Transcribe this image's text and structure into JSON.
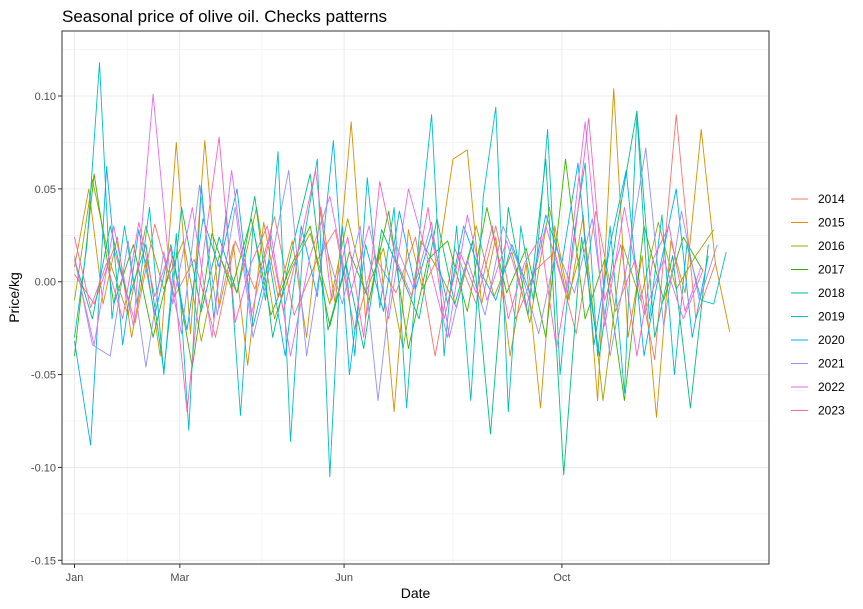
{
  "chart_data": {
    "type": "line",
    "title": "Seasonal price of olive oil. Checks patterns",
    "xlabel": "Date",
    "ylabel": "Price/kg",
    "x_ticks": [
      "Jan",
      "Mar",
      "Jun",
      "Oct"
    ],
    "x_tick_days": [
      1,
      60,
      152,
      274
    ],
    "x_range_days": [
      -6,
      390
    ],
    "ylim": [
      -0.152,
      0.135
    ],
    "y_ticks": [
      -0.15,
      -0.1,
      -0.05,
      0.0,
      0.05,
      0.1
    ],
    "y_tick_labels": [
      "-0.15",
      "-0.10",
      "-0.05",
      "0.00",
      "0.05",
      "0.10"
    ],
    "grid": true,
    "legend_position": "right",
    "colors": [
      "#F8766D",
      "#D89000",
      "#A3A500",
      "#39B600",
      "#00BF7D",
      "#00BFC4",
      "#00B0F6",
      "#9590FF",
      "#E76BF3",
      "#FF62BC"
    ],
    "series": [
      {
        "name": "2014",
        "x": [
          1,
          12,
          23,
          35,
          46,
          57,
          68,
          80,
          91,
          102,
          113,
          124,
          136,
          147,
          158,
          169,
          181,
          192,
          203,
          214,
          226,
          237,
          248,
          259,
          270,
          282,
          293,
          304,
          315,
          326,
          338,
          349,
          360
        ],
        "values": [
          0.004,
          -0.012,
          0.018,
          -0.022,
          0.031,
          -0.008,
          0.012,
          -0.03,
          0.022,
          -0.004,
          0.035,
          -0.018,
          0.01,
          0.028,
          -0.026,
          0.014,
          -0.006,
          0.024,
          -0.04,
          0.018,
          -0.012,
          0.03,
          -0.02,
          0.006,
          0.016,
          -0.028,
          0.038,
          -0.016,
          0.012,
          -0.042,
          0.09,
          -0.02,
          0.01
        ]
      },
      {
        "name": "2015",
        "x": [
          1,
          9,
          17,
          25,
          33,
          41,
          49,
          58,
          66,
          74,
          82,
          90,
          98,
          107,
          115,
          123,
          131,
          139,
          147,
          156,
          164,
          172,
          180,
          188,
          196,
          205,
          213,
          221,
          229,
          237,
          245,
          254,
          262,
          270,
          278,
          286,
          294,
          303,
          311,
          319,
          327,
          335,
          343,
          352,
          360,
          368
        ],
        "values": [
          0.008,
          0.05,
          -0.012,
          0.024,
          -0.03,
          0.012,
          -0.04,
          0.075,
          -0.028,
          0.076,
          -0.014,
          0.02,
          -0.045,
          0.032,
          -0.008,
          0.022,
          -0.03,
          0.04,
          -0.012,
          0.086,
          -0.02,
          0.018,
          -0.07,
          0.028,
          -0.004,
          0.014,
          0.066,
          0.071,
          -0.012,
          0.024,
          -0.04,
          0.01,
          -0.068,
          0.03,
          -0.01,
          0.036,
          -0.064,
          0.104,
          -0.03,
          0.014,
          -0.073,
          0.022,
          -0.006,
          0.082,
          0.01,
          -0.027
        ]
      },
      {
        "name": "2016",
        "x": [
          1,
          11,
          21,
          31,
          41,
          51,
          62,
          72,
          82,
          92,
          103,
          113,
          123,
          133,
          144,
          154,
          164,
          174,
          185,
          195,
          205,
          215,
          226,
          236,
          246,
          256,
          267,
          277,
          287,
          297,
          308,
          318,
          328,
          338,
          349,
          359
        ],
        "values": [
          -0.01,
          0.055,
          0.01,
          -0.018,
          0.03,
          -0.004,
          0.022,
          -0.032,
          0.014,
          -0.006,
          0.04,
          -0.02,
          0.008,
          0.026,
          -0.012,
          0.034,
          -0.006,
          0.018,
          -0.036,
          0.022,
          0.006,
          -0.014,
          0.03,
          -0.008,
          0.016,
          -0.022,
          0.04,
          -0.01,
          0.024,
          -0.064,
          0.02,
          -0.01,
          0.032,
          -0.004,
          0.014,
          0.028
        ]
      },
      {
        "name": "2017",
        "x": [
          1,
          12,
          23,
          34,
          45,
          56,
          67,
          78,
          89,
          100,
          111,
          122,
          133,
          144,
          155,
          166,
          177,
          188,
          199,
          210,
          221,
          232,
          243,
          254,
          265,
          276,
          287,
          298,
          309,
          320,
          331,
          342,
          353
        ],
        "values": [
          -0.04,
          0.058,
          -0.012,
          0.02,
          -0.03,
          0.014,
          -0.046,
          0.026,
          -0.004,
          0.034,
          -0.018,
          0.008,
          0.03,
          -0.024,
          0.016,
          -0.01,
          0.038,
          -0.036,
          0.012,
          0.022,
          -0.016,
          0.04,
          -0.006,
          0.018,
          -0.03,
          0.066,
          -0.02,
          0.012,
          -0.064,
          0.03,
          -0.01,
          0.024,
          0.006
        ]
      },
      {
        "name": "2018",
        "x": [
          1,
          11,
          21,
          31,
          41,
          51,
          61,
          72,
          82,
          92,
          102,
          112,
          122,
          133,
          143,
          153,
          163,
          173,
          183,
          194,
          204,
          214,
          224,
          234,
          244,
          255,
          265,
          275,
          285,
          295,
          305,
          316,
          326,
          336,
          346,
          356
        ],
        "values": [
          0.012,
          -0.02,
          0.03,
          -0.01,
          0.02,
          -0.048,
          0.04,
          -0.016,
          0.024,
          -0.006,
          0.046,
          -0.03,
          0.014,
          0.058,
          -0.026,
          0.01,
          -0.036,
          0.028,
          0.006,
          -0.02,
          0.034,
          -0.012,
          0.022,
          -0.082,
          0.04,
          -0.018,
          0.066,
          -0.104,
          0.024,
          -0.04,
          0.03,
          0.092,
          -0.03,
          0.014,
          -0.068,
          0.02
        ]
      },
      {
        "name": "2019",
        "x": [
          1,
          8,
          15,
          22,
          29,
          36,
          43,
          51,
          58,
          65,
          72,
          79,
          86,
          94,
          101,
          108,
          115,
          122,
          129,
          137,
          144,
          151,
          158,
          165,
          172,
          180,
          187,
          194,
          201,
          208,
          215,
          223,
          230,
          237,
          244,
          251,
          258,
          266,
          273,
          280,
          287,
          294,
          301,
          309,
          316,
          323,
          330,
          337,
          344,
          352,
          359,
          366
        ],
        "values": [
          -0.03,
          0.02,
          0.118,
          -0.02,
          0.03,
          -0.012,
          0.04,
          -0.05,
          0.026,
          -0.08,
          0.052,
          -0.02,
          0.038,
          -0.072,
          0.03,
          -0.01,
          0.07,
          -0.086,
          0.02,
          0.066,
          -0.105,
          0.03,
          -0.04,
          0.056,
          -0.014,
          0.04,
          -0.068,
          0.024,
          0.09,
          -0.04,
          0.03,
          -0.064,
          0.046,
          0.094,
          -0.07,
          0.03,
          -0.01,
          0.082,
          -0.05,
          0.02,
          0.064,
          -0.04,
          0.03,
          -0.06,
          0.09,
          -0.02,
          0.036,
          -0.05,
          0.02,
          -0.01,
          -0.012,
          0.016
        ]
      },
      {
        "name": "2020",
        "x": [
          1,
          10,
          19,
          28,
          37,
          46,
          55,
          64,
          73,
          82,
          92,
          101,
          110,
          119,
          128,
          137,
          146,
          155,
          164,
          174,
          183,
          192,
          201,
          210,
          219,
          228,
          237,
          246,
          256,
          265,
          274,
          283,
          292,
          301,
          310,
          320,
          329,
          338,
          347,
          356
        ],
        "values": [
          -0.032,
          -0.088,
          0.062,
          -0.034,
          0.028,
          -0.018,
          0.02,
          -0.026,
          0.034,
          0.008,
          0.05,
          -0.024,
          0.012,
          -0.04,
          0.03,
          -0.008,
          0.076,
          -0.05,
          0.02,
          -0.016,
          0.038,
          -0.004,
          0.026,
          -0.012,
          0.03,
          0.006,
          -0.01,
          0.02,
          -0.006,
          0.036,
          0.01,
          0.064,
          -0.034,
          0.02,
          0.06,
          -0.04,
          0.008,
          0.05,
          -0.03,
          0.014
        ]
      },
      {
        "name": "2021",
        "x": [
          1,
          11,
          21,
          31,
          41,
          51,
          61,
          71,
          81,
          91,
          101,
          111,
          121,
          131,
          141,
          151,
          161,
          171,
          181,
          191,
          201,
          211,
          221,
          231,
          241,
          251,
          261,
          271,
          281,
          291,
          301,
          311,
          321,
          331,
          341,
          351,
          361
        ],
        "values": [
          0.014,
          -0.034,
          -0.04,
          0.022,
          -0.046,
          0.016,
          -0.028,
          0.052,
          -0.018,
          0.04,
          -0.03,
          0.01,
          0.06,
          -0.04,
          0.022,
          -0.012,
          0.03,
          -0.064,
          0.02,
          -0.004,
          0.032,
          -0.03,
          0.012,
          -0.018,
          0.03,
          0.006,
          -0.028,
          0.018,
          -0.006,
          0.034,
          -0.04,
          0.012,
          0.072,
          -0.024,
          0.038,
          -0.01,
          0.02
        ]
      },
      {
        "name": "2022",
        "x": [
          1,
          12,
          23,
          34,
          45,
          56,
          67,
          78,
          89,
          100,
          111,
          122,
          133,
          144,
          155,
          166,
          177,
          188,
          199,
          210,
          221,
          232,
          243,
          254,
          265,
          276,
          287,
          298,
          309,
          320,
          331,
          342,
          353
        ],
        "values": [
          0.012,
          -0.034,
          0.03,
          -0.024,
          0.101,
          -0.012,
          0.04,
          -0.03,
          0.06,
          -0.018,
          0.026,
          -0.04,
          0.014,
          0.046,
          -0.008,
          0.03,
          -0.02,
          0.05,
          0.012,
          -0.03,
          0.036,
          -0.01,
          0.022,
          -0.014,
          0.03,
          -0.006,
          0.086,
          -0.024,
          0.04,
          -0.018,
          0.012,
          -0.02,
          0.006
        ]
      },
      {
        "name": "2023",
        "x": [
          1,
          10,
          19,
          28,
          37,
          46,
          55,
          64,
          73,
          82,
          91,
          100,
          109,
          118,
          127,
          136,
          145,
          154,
          163,
          172,
          181,
          190,
          199,
          208,
          217,
          226,
          235,
          244,
          253,
          262,
          271,
          280,
          289,
          298,
          307,
          316,
          325,
          334,
          343,
          352
        ],
        "values": [
          0.024,
          -0.014,
          0.01,
          -0.02,
          0.032,
          -0.008,
          0.018,
          -0.07,
          0.014,
          0.078,
          -0.022,
          0.01,
          0.03,
          -0.016,
          0.02,
          0.06,
          -0.01,
          0.024,
          -0.03,
          0.054,
          0.012,
          -0.008,
          0.04,
          -0.02,
          0.016,
          -0.006,
          0.03,
          -0.02,
          0.01,
          0.024,
          -0.036,
          0.014,
          0.088,
          -0.01,
          0.02,
          -0.04,
          0.012,
          0.03,
          -0.016,
          0.008
        ]
      }
    ]
  }
}
